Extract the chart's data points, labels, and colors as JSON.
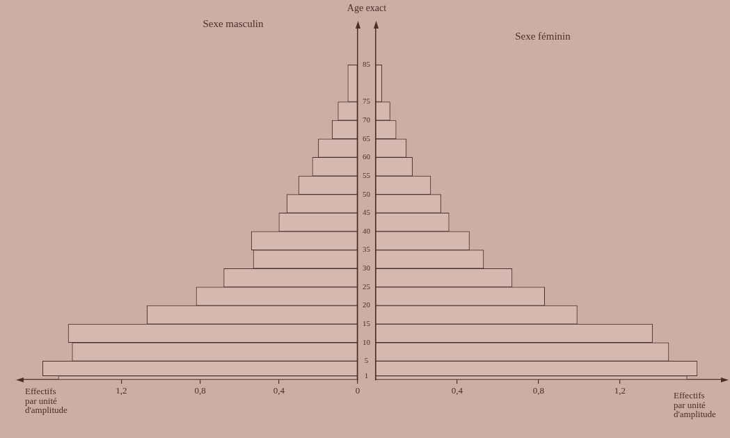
{
  "chart_data": [
    {
      "type": "histogram",
      "orientation": "horizontal",
      "title": "Sexe masculin",
      "xlabel": "Effectifs par unité d'amplitude",
      "ylabel": "Age exact",
      "bins": [
        0,
        1,
        5,
        10,
        15,
        20,
        25,
        30,
        35,
        40,
        45,
        50,
        55,
        60,
        65,
        70,
        75,
        85
      ],
      "values": [
        1.52,
        1.6,
        1.45,
        1.47,
        1.07,
        0.82,
        0.68,
        0.53,
        0.54,
        0.4,
        0.36,
        0.3,
        0.23,
        0.2,
        0.13,
        0.1,
        0.05
      ],
      "color": "#d5b8af",
      "xlim": [
        1.7,
        0
      ],
      "xticks": [
        0,
        {
          "value": 0.4,
          "label": "0,4"
        },
        {
          "value": 0.8,
          "label": "0,8"
        },
        {
          "value": 1.2,
          "label": "1,2"
        }
      ],
      "ylim": [
        0,
        95
      ],
      "yticks": [
        1,
        5,
        10,
        15,
        20,
        25,
        30,
        35,
        40,
        45,
        50,
        55,
        60,
        65,
        70,
        75,
        85
      ]
    },
    {
      "type": "histogram",
      "orientation": "horizontal",
      "title": "Sexe féminin",
      "xlabel": "Effectifs par unité d'amplitude",
      "bins": [
        0,
        1,
        5,
        10,
        15,
        20,
        25,
        30,
        35,
        40,
        45,
        50,
        55,
        60,
        65,
        70,
        75,
        85
      ],
      "values": [
        1.53,
        1.58,
        1.44,
        1.36,
        0.99,
        0.83,
        0.67,
        0.53,
        0.46,
        0.36,
        0.32,
        0.27,
        0.18,
        0.15,
        0.1,
        0.07,
        0.03
      ],
      "color": "#d5b8af",
      "xlim": [
        0,
        1.7
      ],
      "xticks": [
        {
          "value": 0.4,
          "label": "0,4"
        },
        {
          "value": 0.8,
          "label": "0,8"
        },
        {
          "value": 1.2,
          "label": "1,2"
        }
      ],
      "ylim": [
        0,
        95
      ],
      "tick_labels": "x"
    }
  ]
}
